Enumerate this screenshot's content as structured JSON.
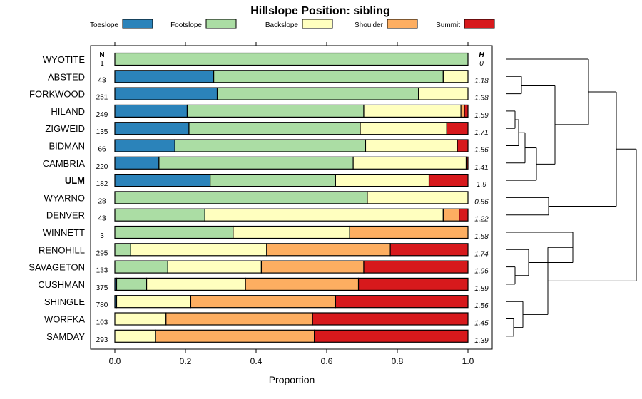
{
  "chart_data": {
    "type": "bar",
    "stacked": true,
    "orientation": "horizontal",
    "title": "Hillslope Position: sibling",
    "xlabel": "Proportion",
    "ylabel": "",
    "xlim": [
      0,
      1
    ],
    "xticks": [
      "0.0",
      "0.2",
      "0.4",
      "0.6",
      "0.8",
      "1.0"
    ],
    "n_header": "N",
    "h_header": "H",
    "highlighted_category": "ULM",
    "legend": [
      {
        "name": "Toeslope",
        "color": "#2b83ba"
      },
      {
        "name": "Footslope",
        "color": "#abdda4"
      },
      {
        "name": "Backslope",
        "color": "#ffffbf"
      },
      {
        "name": "Shoulder",
        "color": "#fdae61"
      },
      {
        "name": "Summit",
        "color": "#d7191c"
      }
    ],
    "categories": [
      "WYOTITE",
      "ABSTED",
      "FORKWOOD",
      "HILAND",
      "ZIGWEID",
      "BIDMAN",
      "CAMBRIA",
      "ULM",
      "WYARNO",
      "DENVER",
      "WINNETT",
      "RENOHILL",
      "SAVAGETON",
      "CUSHMAN",
      "SHINGLE",
      "WORFKA",
      "SAMDAY"
    ],
    "n": [
      "1",
      "43",
      "251",
      "249",
      "135",
      "66",
      "220",
      "182",
      "28",
      "43",
      "3",
      "295",
      "133",
      "375",
      "780",
      "103",
      "293"
    ],
    "h": [
      "0",
      "1.18",
      "1.38",
      "1.59",
      "1.71",
      "1.56",
      "1.41",
      "1.9",
      "0.86",
      "1.22",
      "1.58",
      "1.74",
      "1.96",
      "1.89",
      "1.56",
      "1.45",
      "1.39"
    ],
    "series": [
      {
        "name": "Toeslope",
        "values": [
          0,
          0.28,
          0.29,
          0.205,
          0.21,
          0.17,
          0.125,
          0.27,
          0,
          0,
          0,
          0,
          0,
          0.005,
          0.005,
          0,
          0
        ]
      },
      {
        "name": "Footslope",
        "values": [
          1,
          0.65,
          0.57,
          0.5,
          0.485,
          0.54,
          0.55,
          0.355,
          0.715,
          0.255,
          0.335,
          0.045,
          0.15,
          0.085,
          0,
          0,
          0
        ]
      },
      {
        "name": "Backslope",
        "values": [
          0,
          0.07,
          0.14,
          0.275,
          0.245,
          0.26,
          0.32,
          0.265,
          0.285,
          0.675,
          0.33,
          0.385,
          0.265,
          0.28,
          0.21,
          0.145,
          0.115
        ]
      },
      {
        "name": "Shoulder",
        "values": [
          0,
          0,
          0,
          0.01,
          0,
          0,
          0,
          0,
          0,
          0.045,
          0.335,
          0.35,
          0.29,
          0.32,
          0.41,
          0.415,
          0.45
        ]
      },
      {
        "name": "Summit",
        "values": [
          0,
          0,
          0,
          0.01,
          0.06,
          0.03,
          0.005,
          0.11,
          0,
          0.025,
          0,
          0.22,
          0.295,
          0.31,
          0.375,
          0.44,
          0.435
        ]
      }
    ]
  }
}
